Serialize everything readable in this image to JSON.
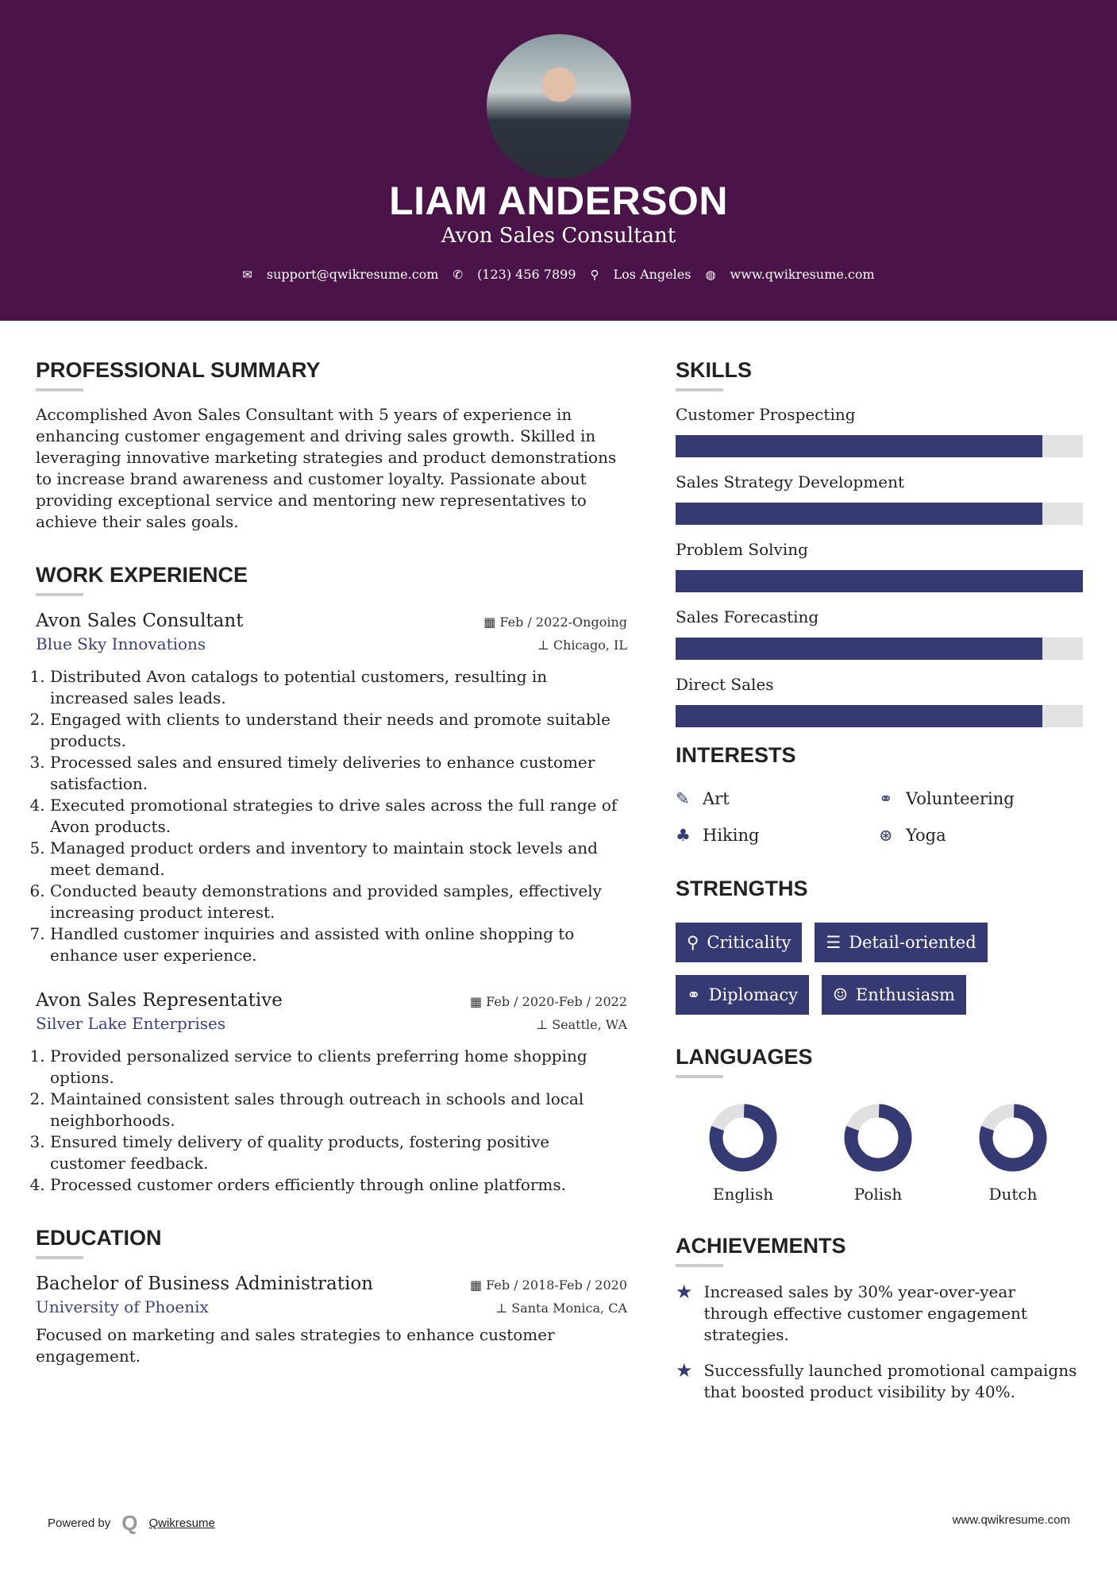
{
  "header": {
    "name": "LIAM ANDERSON",
    "title": "Avon Sales Consultant",
    "email": "support@qwikresume.com",
    "phone": "(123) 456 7899",
    "location": "Los Angeles",
    "website": "www.qwikresume.com"
  },
  "summary": {
    "heading": "PROFESSIONAL SUMMARY",
    "text": "Accomplished Avon Sales Consultant with 5 years of experience in enhancing customer engagement and driving sales growth. Skilled in leveraging innovative marketing strategies and product demonstrations to increase brand awareness and customer loyalty. Passionate about providing exceptional service and mentoring new representatives to achieve their sales goals."
  },
  "work": {
    "heading": "WORK EXPERIENCE",
    "jobs": [
      {
        "title": "Avon Sales Consultant",
        "company": "Blue Sky Innovations",
        "dates": "Feb / 2022-Ongoing",
        "location": "Chicago, IL",
        "items": [
          "Distributed Avon catalogs to potential customers, resulting in increased sales leads.",
          "Engaged with clients to understand their needs and promote suitable products.",
          "Processed sales and ensured timely deliveries to enhance customer satisfaction.",
          "Executed promotional strategies to drive sales across the full range of Avon products.",
          "Managed product orders and inventory to maintain stock levels and meet demand.",
          "Conducted beauty demonstrations and provided samples, effectively increasing product interest.",
          "Handled customer inquiries and assisted with online shopping to enhance user experience."
        ]
      },
      {
        "title": "Avon Sales Representative",
        "company": "Silver Lake Enterprises",
        "dates": "Feb / 2020-Feb / 2022",
        "location": "Seattle, WA",
        "items": [
          "Provided personalized service to clients preferring home shopping options.",
          "Maintained consistent sales through outreach in schools and local neighborhoods.",
          "Ensured timely delivery of quality products, fostering positive customer feedback.",
          "Processed customer orders efficiently through online platforms."
        ]
      }
    ]
  },
  "education": {
    "heading": "EDUCATION",
    "degree": "Bachelor of Business Administration",
    "school": "University of Phoenix",
    "dates": "Feb / 2018-Feb / 2020",
    "location": "Santa Monica, CA",
    "text": "Focused on marketing and sales strategies to enhance customer engagement."
  },
  "skills": {
    "heading": "SKILLS",
    "items": [
      {
        "name": "Customer Prospecting",
        "level": 0.9
      },
      {
        "name": "Sales Strategy Development",
        "level": 0.9
      },
      {
        "name": "Problem Solving",
        "level": 1.0
      },
      {
        "name": "Sales Forecasting",
        "level": 0.9
      },
      {
        "name": "Direct Sales",
        "level": 0.9
      }
    ]
  },
  "interests": {
    "heading": "INTERESTS",
    "items": [
      {
        "label": "Art",
        "icon": "paintbrush-icon"
      },
      {
        "label": "Volunteering",
        "icon": "handshake-icon"
      },
      {
        "label": "Hiking",
        "icon": "tree-icon"
      },
      {
        "label": "Yoga",
        "icon": "lifering-icon"
      }
    ]
  },
  "strengths": {
    "heading": "STRENGTHS",
    "items": [
      {
        "label": "Criticality",
        "icon": "search-icon"
      },
      {
        "label": "Detail-oriented",
        "icon": "list-icon"
      },
      {
        "label": "Diplomacy",
        "icon": "handshake-icon"
      },
      {
        "label": "Enthusiasm",
        "icon": "smile-icon"
      }
    ]
  },
  "languages": {
    "heading": "LANGUAGES",
    "items": [
      {
        "name": "English",
        "level": 0.8
      },
      {
        "name": "Polish",
        "level": 0.8
      },
      {
        "name": "Dutch",
        "level": 0.8
      }
    ]
  },
  "achievements": {
    "heading": "ACHIEVEMENTS",
    "items": [
      "Increased sales by 30% year-over-year through effective customer engagement strategies.",
      "Successfully launched promotional campaigns that boosted product visibility by 40%."
    ]
  },
  "footer": {
    "powered": "Powered by",
    "brand": "Qwikresume",
    "url": "www.qwikresume.com"
  },
  "colors": {
    "header": "#4a1448",
    "accent": "#353a73"
  }
}
